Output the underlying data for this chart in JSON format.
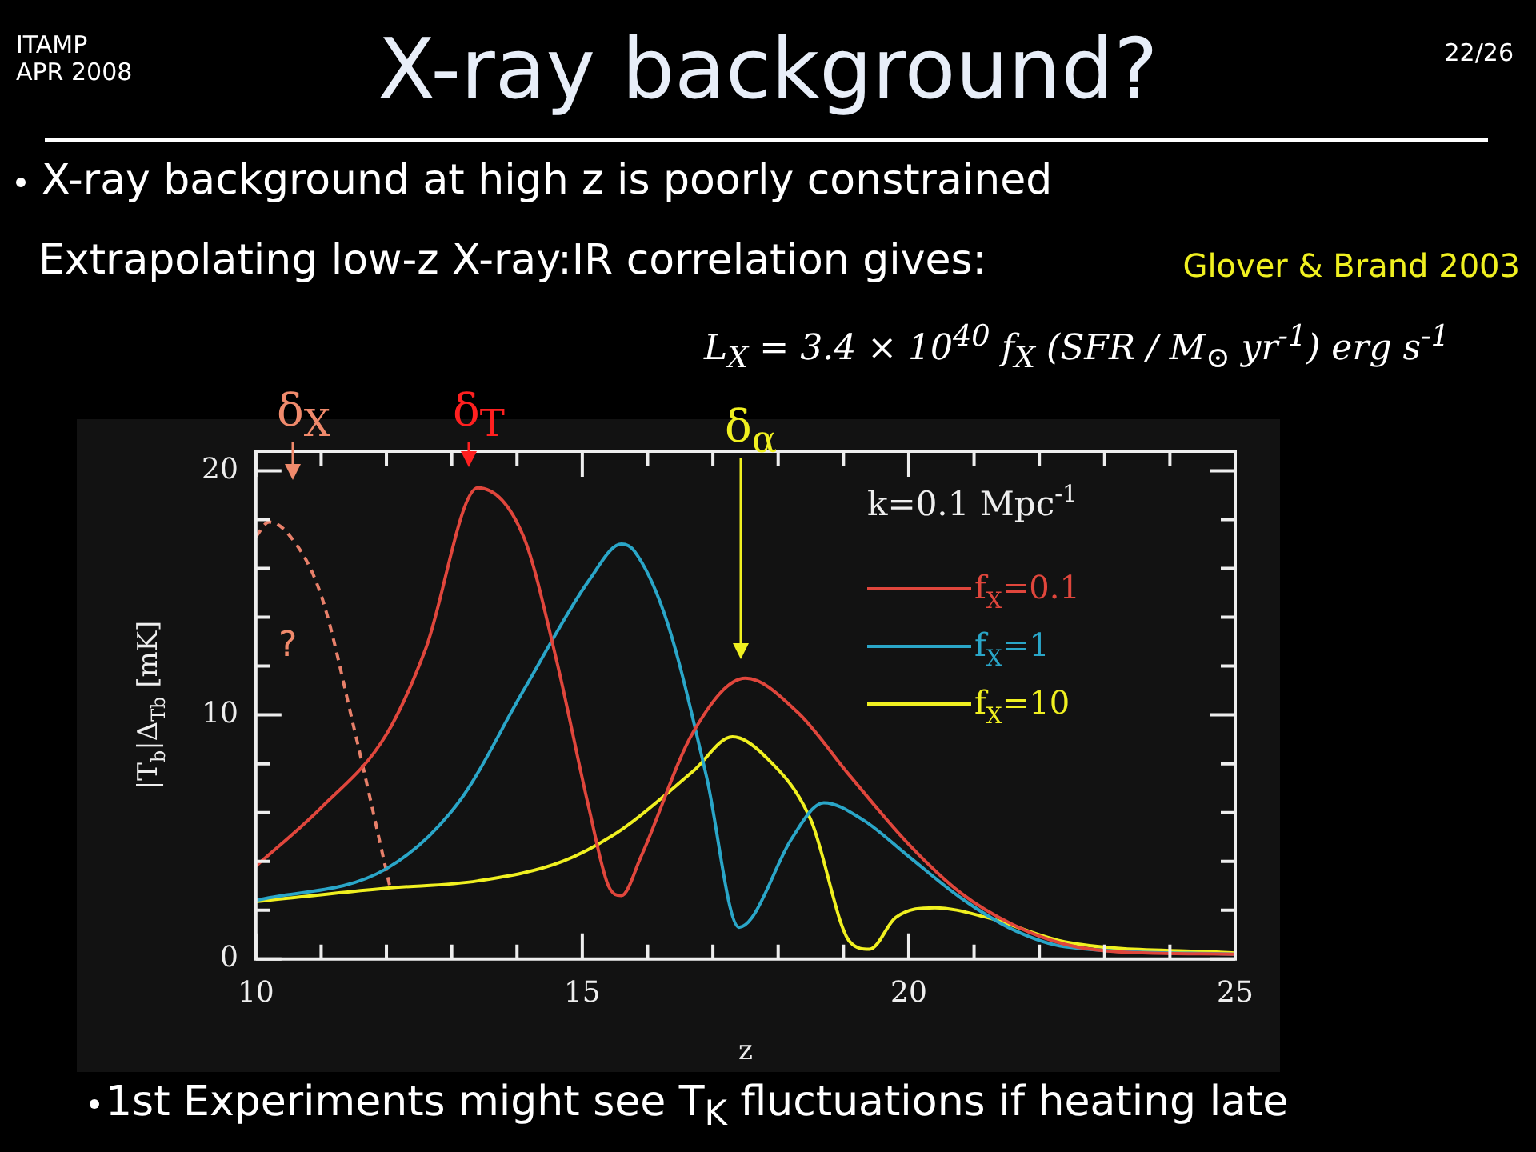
{
  "chart_data": {
    "type": "line",
    "title": "X-ray background?",
    "xlabel": "z",
    "ylabel": "|T$_{b}$|Δ$_{Tb}$ [mK]",
    "legend_title": "k=0.1 Mpc$^{-1}$",
    "legend": "top right",
    "xlim": [
      10,
      25
    ],
    "ylim": [
      0,
      20.8
    ],
    "xticks": [
      10,
      {
        "value": 11,
        "label": null
      },
      {
        "value": 12,
        "label": null
      },
      {
        "value": 13,
        "label": null
      },
      {
        "value": 14,
        "label": null
      },
      15,
      {
        "value": 16,
        "label": null
      },
      {
        "value": 17,
        "label": null
      },
      {
        "value": 18,
        "label": null
      },
      {
        "value": 19,
        "label": null
      },
      20,
      {
        "value": 21,
        "label": null
      },
      {
        "value": 22,
        "label": null
      },
      {
        "value": 23,
        "label": null
      },
      {
        "value": 24,
        "label": null
      },
      25
    ],
    "yticks": [
      0,
      {
        "value": 2,
        "label": null
      },
      {
        "value": 4,
        "label": null
      },
      {
        "value": 6,
        "label": null
      },
      {
        "value": 8,
        "label": null
      },
      10,
      {
        "value": 12,
        "label": null
      },
      {
        "value": 14,
        "label": null
      },
      {
        "value": 16,
        "label": null
      },
      {
        "value": 18,
        "label": null
      },
      20
    ],
    "series": [
      {
        "name": "f$_{X}$=0.1",
        "color": "#e0463c",
        "x": [
          10,
          11,
          12,
          12.6,
          13.4,
          14.1,
          14.6,
          15.1,
          15.4,
          15.6,
          15.9,
          16.7,
          17.5,
          18.3,
          19.1,
          20,
          20.8,
          21.6,
          22.4,
          23.2,
          25
        ],
        "values": [
          3.8,
          6.2,
          9.2,
          12.7,
          19.3,
          17.3,
          12.3,
          6.2,
          3,
          2.6,
          4.2,
          9.3,
          11.5,
          10.1,
          7.5,
          4.7,
          2.7,
          1.4,
          0.6,
          0.3,
          0.2
        ]
      },
      {
        "name": "f$_{X}$=1",
        "color": "#2aa6c8",
        "x": [
          10,
          12,
          13.1,
          14.1,
          15.1,
          15.6,
          15.8,
          16.3,
          16.9,
          17.4,
          17.6,
          18.2,
          18.7,
          19.3,
          20,
          20.8,
          21.6,
          22.4,
          25
        ],
        "values": [
          2.4,
          3.7,
          6.4,
          11,
          15.5,
          17,
          16.7,
          13.8,
          7.5,
          1.3,
          1.7,
          4.9,
          6.4,
          5.7,
          4.2,
          2.5,
          1.2,
          0.5,
          0.2
        ]
      },
      {
        "name": "f$_{X}$=10",
        "color": "#f0f020",
        "x": [
          10,
          12,
          13.4,
          14.7,
          15.6,
          16.7,
          17.3,
          17.8,
          18.5,
          19.1,
          19.4,
          19.8,
          20.4,
          21.2,
          22.4,
          25
        ],
        "values": [
          2.35,
          2.9,
          3.2,
          4,
          5.3,
          7.7,
          9.1,
          8.3,
          5.7,
          0.7,
          0.4,
          1.7,
          2.1,
          1.7,
          0.7,
          0.25
        ]
      },
      {
        "color": "#e8806a",
        "line_style": "dashed",
        "x": [
          10,
          10.2,
          10.5,
          11,
          11.5,
          12.05
        ],
        "values": [
          17.3,
          17.9,
          17.4,
          14.9,
          9.5,
          3
        ]
      }
    ],
    "annotations": [
      "ITAMP\nAPR 2008",
      "22/26",
      "X-ray background at high z is poorly constrained",
      "Extrapolating low-z X-ray:IR correlation gives:",
      "Glover & Brand 2003",
      "L$_{X}$ = 3.4 × 10$^{40}$ f$_{X}$ (SFR / M$_{⊙}$ yr$^{-1}$) erg s$^{-1}$",
      "1st Experiments might see T$_{K}$ fluctuations if heating late",
      "δ$_{X}$",
      "δ$_{T}$",
      "δ$_{α}$",
      "?"
    ]
  }
}
